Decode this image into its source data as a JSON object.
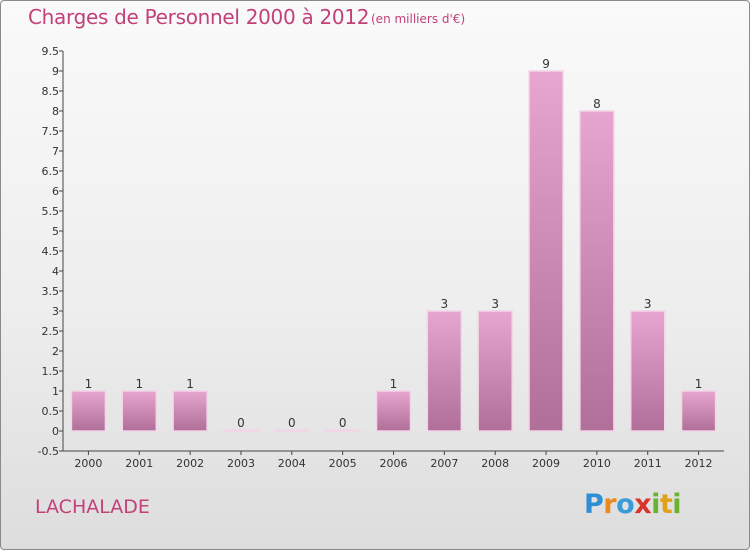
{
  "header": {
    "title": "Charges de Personnel 2000 à 2012",
    "subtitle": "(en milliers d'€)"
  },
  "footer": {
    "commune": "LACHALADE",
    "logo_text": "Proxiti"
  },
  "colors": {
    "title": "#c2417a",
    "bar_light": "#e6a6cf",
    "bar_dark": "#b06f98",
    "axis": "#444444"
  },
  "chart_data": {
    "type": "bar",
    "title": "Charges de Personnel 2000 à 2012",
    "subtitle": "(en milliers d'€)",
    "categories": [
      "2000",
      "2001",
      "2002",
      "2003",
      "2004",
      "2005",
      "2006",
      "2007",
      "2008",
      "2009",
      "2010",
      "2011",
      "2012"
    ],
    "values": [
      1,
      1,
      1,
      0,
      0,
      0,
      1,
      3,
      3,
      9,
      8,
      3,
      1
    ],
    "data_labels": [
      "1",
      "1",
      "1",
      "0",
      "0",
      "0",
      "1",
      "3",
      "3",
      "9",
      "8",
      "3",
      "1"
    ],
    "yticks": [
      "-0.5",
      "0",
      "0.5",
      "1",
      "1.5",
      "2",
      "2.5",
      "3",
      "3.5",
      "4",
      "4.5",
      "5",
      "5.5",
      "6",
      "6.5",
      "7",
      "7.5",
      "8",
      "8.5",
      "9",
      "9.5"
    ],
    "ylim": [
      -0.5,
      9.5
    ],
    "grid": false,
    "legend": "none"
  }
}
